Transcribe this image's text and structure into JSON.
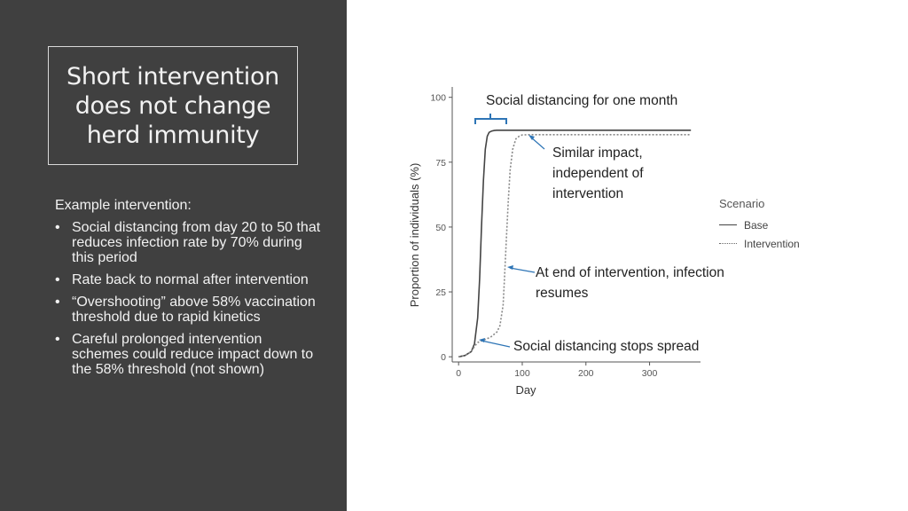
{
  "title": "Short intervention does not change herd immunity",
  "intro": "Example intervention:",
  "bullets": [
    "Social distancing from day 20 to 50 that reduces infection rate by 70% during this period",
    "Rate back to normal after intervention",
    "“Overshooting” above 58% vaccination threshold due to rapid kinetics",
    "Careful prolonged intervention schemes could reduce impact down to the 58% threshold (not shown)"
  ],
  "annotations": {
    "social_month": "Social distancing for one month",
    "similar_impact": "Similar impact, independent of intervention",
    "end_intervention": "At end of intervention, infection resumes",
    "stops_spread": "Social distancing stops spread"
  },
  "colors": {
    "panel": "#404040",
    "base_line": "#444444",
    "intervention_line": "#888888",
    "bracket": "#2e75b6"
  },
  "chart_data": {
    "type": "line",
    "xlabel": "Day",
    "ylabel": "Proportion of individuals (%)",
    "xlim": [
      -10,
      380
    ],
    "ylim": [
      -2,
      104
    ],
    "xticks": [
      0,
      100,
      200,
      300
    ],
    "yticks": [
      0,
      25,
      50,
      75,
      100
    ],
    "grid": false,
    "legend": {
      "title": "Scenario",
      "position": "right"
    },
    "series": [
      {
        "name": "Base",
        "style": "solid",
        "x": [
          0,
          10,
          20,
          25,
          30,
          33,
          36,
          39,
          42,
          45,
          48,
          52,
          56,
          60,
          70,
          100,
          200,
          300,
          365
        ],
        "y": [
          0,
          0.5,
          2,
          5,
          15,
          30,
          50,
          68,
          80,
          85,
          86.5,
          87,
          87.2,
          87.3,
          87.3,
          87.3,
          87.3,
          87.3,
          87.3
        ]
      },
      {
        "name": "Intervention",
        "style": "dotted",
        "x": [
          0,
          10,
          20,
          25,
          30,
          40,
          50,
          60,
          65,
          70,
          72,
          75,
          78,
          81,
          85,
          90,
          95,
          100,
          110,
          200,
          300,
          365
        ],
        "y": [
          0,
          0.5,
          2,
          4,
          5.5,
          6.5,
          7.5,
          9.5,
          12,
          20,
          30,
          45,
          60,
          72,
          80,
          84,
          85,
          85.5,
          85.6,
          85.6,
          85.6,
          85.6
        ]
      }
    ]
  }
}
